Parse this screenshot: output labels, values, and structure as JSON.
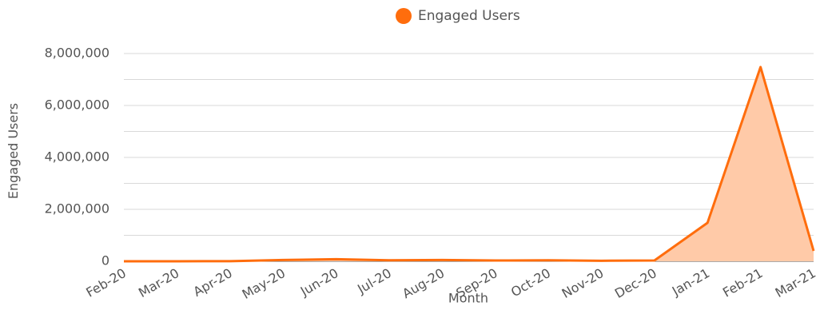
{
  "chart_data": {
    "type": "area",
    "x_label": "Month",
    "y_label": "Engaged Users",
    "categories": [
      "Feb-20",
      "Mar-20",
      "Apr-20",
      "May-20",
      "Jun-20",
      "Jul-20",
      "Aug-20",
      "Sep-20",
      "Oct-20",
      "Nov-20",
      "Dec-20",
      "Jan-21",
      "Feb-21",
      "Mar-21"
    ],
    "series": [
      {
        "name": "Engaged Users",
        "color": "#ff6d0d",
        "fill": "#ffcaa8",
        "values": [
          0,
          0,
          5000,
          50000,
          80000,
          40000,
          50000,
          30000,
          40000,
          20000,
          30000,
          1480000,
          7480000,
          400000
        ]
      }
    ],
    "ylim": [
      0,
      8000000
    ],
    "yticks": [
      0,
      {
        "value": 2000000,
        "label": "2,000,000"
      },
      {
        "value": 4000000,
        "label": "4,000,000"
      },
      {
        "value": 6000000,
        "label": "6,000,000"
      },
      {
        "value": 8000000,
        "label": "8,000,000"
      }
    ],
    "minor_yticks": [
      1000000,
      3000000,
      5000000,
      7000000
    ],
    "grid": true,
    "legend": "top"
  }
}
